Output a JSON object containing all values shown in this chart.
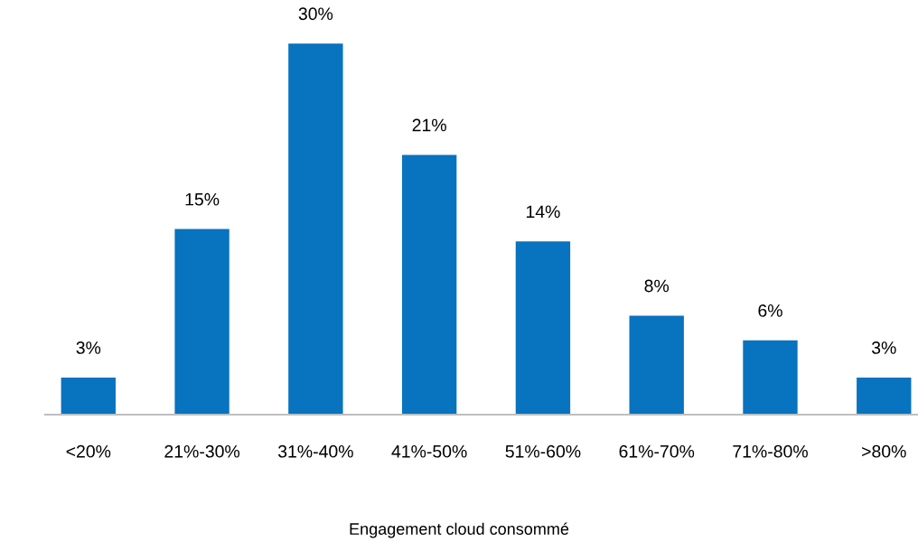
{
  "chart_data": {
    "type": "bar",
    "xlabel": "Engagement cloud consommé",
    "categories": [
      "<20%",
      "21%-30%",
      "31%-40%",
      "41%-50%",
      "51%-60%",
      "61%-70%",
      "71%-80%",
      ">80%"
    ],
    "values": [
      3,
      15,
      30,
      21,
      14,
      8,
      6,
      3
    ],
    "value_labels": [
      "3%",
      "15%",
      "30%",
      "21%",
      "14%",
      "8%",
      "6%",
      "3%"
    ],
    "color": "#0873bf",
    "tick_labels": "x",
    "grid": false,
    "legend": false
  }
}
